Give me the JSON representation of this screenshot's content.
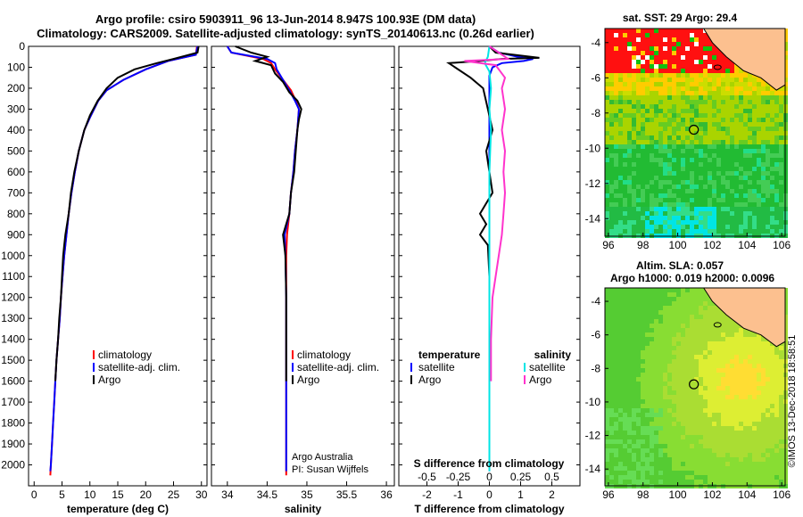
{
  "header": {
    "title_line1": "Argo profile: csiro 5903911_96 13-Jun-2014 8.947S 100.93E (DM data)",
    "title_line2": "Climatology: CARS2009. Satellite-adjusted climatology: synTS_20140613.nc (0.26d earlier)"
  },
  "colors": {
    "climatology": "#ff0000",
    "satellite_adj": "#0000ff",
    "argo": "#000000",
    "satellite_salinity": "#00e5e5",
    "argo_salinity_diff": "#ff33cc",
    "land": "#fcc08f"
  },
  "chart_data": [
    {
      "id": "temperature",
      "type": "line",
      "xlabel": "temperature (deg C)",
      "ylabel": "",
      "xlim": [
        -1,
        31
      ],
      "ylim": [
        2100,
        0
      ],
      "xticks": [
        "0",
        "5",
        "10",
        "15",
        "20",
        "25",
        "30"
      ],
      "xtick_values": [
        0,
        5,
        10,
        15,
        20,
        25,
        30
      ],
      "yticks": [
        "0",
        "100",
        "200",
        "300",
        "400",
        "500",
        "600",
        "700",
        "800",
        "900",
        "1000",
        "1100",
        "1200",
        "1300",
        "1400",
        "1500",
        "1600",
        "1700",
        "1800",
        "1900",
        "2000"
      ],
      "legend": [
        "climatology",
        "satellite-adj. clim.",
        "Argo"
      ],
      "series": [
        {
          "name": "climatology",
          "color": "#ff0000",
          "points": [
            [
              29.2,
              0
            ],
            [
              29.0,
              40
            ],
            [
              24,
              70
            ],
            [
              20,
              110
            ],
            [
              16,
              160
            ],
            [
              13,
              210
            ],
            [
              11.5,
              260
            ],
            [
              10,
              340
            ],
            [
              9,
              400
            ],
            [
              8,
              500
            ],
            [
              7.3,
              600
            ],
            [
              6.7,
              700
            ],
            [
              6.2,
              800
            ],
            [
              5.8,
              900
            ],
            [
              5.4,
              1000
            ],
            [
              5.1,
              1100
            ],
            [
              4.8,
              1200
            ],
            [
              4.6,
              1300
            ],
            [
              4.3,
              1400
            ],
            [
              4.0,
              1500
            ],
            [
              3.8,
              1600
            ],
            [
              3.6,
              1700
            ],
            [
              3.4,
              1800
            ],
            [
              3.2,
              1900
            ],
            [
              3.0,
              2000
            ],
            [
              2.9,
              2050
            ]
          ]
        },
        {
          "name": "satellite-adj. clim.",
          "color": "#0000ff",
          "points": [
            [
              29.3,
              0
            ],
            [
              29.0,
              40
            ],
            [
              24,
              70
            ],
            [
              20,
              110
            ],
            [
              16,
              160
            ],
            [
              13,
              210
            ],
            [
              11.5,
              260
            ],
            [
              10,
              340
            ],
            [
              9,
              400
            ],
            [
              8,
              500
            ],
            [
              7.3,
              600
            ],
            [
              6.7,
              700
            ],
            [
              6.2,
              800
            ],
            [
              5.8,
              900
            ],
            [
              5.4,
              1000
            ],
            [
              5.1,
              1100
            ],
            [
              4.8,
              1200
            ],
            [
              4.6,
              1300
            ],
            [
              4.3,
              1400
            ],
            [
              4.0,
              1500
            ],
            [
              3.8,
              1600
            ],
            [
              3.6,
              1700
            ],
            [
              3.4,
              1800
            ],
            [
              3.2,
              1900
            ],
            [
              3.0,
              2000
            ],
            [
              2.9,
              2030
            ]
          ]
        },
        {
          "name": "Argo",
          "color": "#000000",
          "points": [
            [
              29.5,
              0
            ],
            [
              29.3,
              30
            ],
            [
              25,
              60
            ],
            [
              22,
              80
            ],
            [
              18,
              110
            ],
            [
              15,
              150
            ],
            [
              13,
              200
            ],
            [
              11.4,
              260
            ],
            [
              10,
              330
            ],
            [
              9,
              400
            ],
            [
              8,
              500
            ],
            [
              7.2,
              600
            ],
            [
              6.6,
              700
            ],
            [
              6.2,
              800
            ],
            [
              5.6,
              900
            ],
            [
              5.4,
              950
            ],
            [
              5.2,
              1000
            ],
            [
              5.0,
              1100
            ],
            [
              4.8,
              1200
            ],
            [
              4.5,
              1300
            ],
            [
              4.3,
              1400
            ],
            [
              4.0,
              1500
            ],
            [
              3.8,
              1600
            ]
          ]
        }
      ]
    },
    {
      "id": "salinity",
      "type": "line",
      "xlabel": "salinity",
      "xlim": [
        33.8,
        36.1
      ],
      "ylim": [
        2100,
        0
      ],
      "xticks": [
        "34",
        "34.5",
        "35",
        "35.5",
        "36"
      ],
      "xtick_values": [
        34,
        34.5,
        35,
        35.5,
        36
      ],
      "legend": [
        "climatology",
        "satellite-adj. clim.",
        "Argo"
      ],
      "annotations": [
        "Argo Australia",
        "PI: Susan Wijffels"
      ],
      "series": [
        {
          "name": "climatology",
          "color": "#ff0000",
          "points": [
            [
              34.0,
              0
            ],
            [
              34.05,
              30
            ],
            [
              34.45,
              60
            ],
            [
              34.55,
              80
            ],
            [
              34.6,
              110
            ],
            [
              34.7,
              160
            ],
            [
              34.8,
              210
            ],
            [
              34.86,
              260
            ],
            [
              34.9,
              300
            ],
            [
              34.88,
              400
            ],
            [
              34.85,
              500
            ],
            [
              34.83,
              600
            ],
            [
              34.8,
              700
            ],
            [
              34.78,
              800
            ],
            [
              34.75,
              900
            ],
            [
              34.74,
              1000
            ],
            [
              34.74,
              1200
            ],
            [
              34.74,
              1400
            ],
            [
              34.74,
              1600
            ],
            [
              34.74,
              1800
            ],
            [
              34.74,
              2050
            ]
          ]
        },
        {
          "name": "satellite-adj. clim.",
          "color": "#0000ff",
          "points": [
            [
              34.0,
              0
            ],
            [
              34.05,
              30
            ],
            [
              34.5,
              60
            ],
            [
              34.6,
              80
            ],
            [
              34.62,
              110
            ],
            [
              34.7,
              160
            ],
            [
              34.78,
              210
            ],
            [
              34.85,
              260
            ],
            [
              34.9,
              300
            ],
            [
              34.88,
              400
            ],
            [
              34.85,
              500
            ],
            [
              34.83,
              600
            ],
            [
              34.8,
              700
            ],
            [
              34.78,
              800
            ],
            [
              34.72,
              900
            ],
            [
              34.73,
              1000
            ],
            [
              34.74,
              1200
            ],
            [
              34.74,
              1400
            ],
            [
              34.74,
              1600
            ],
            [
              34.74,
              1800
            ],
            [
              34.74,
              2030
            ]
          ]
        },
        {
          "name": "Argo",
          "color": "#000000",
          "points": [
            [
              34.1,
              0
            ],
            [
              34.3,
              30
            ],
            [
              34.5,
              50
            ],
            [
              34.35,
              70
            ],
            [
              34.55,
              90
            ],
            [
              34.6,
              130
            ],
            [
              34.7,
              170
            ],
            [
              34.78,
              220
            ],
            [
              34.88,
              260
            ],
            [
              34.93,
              300
            ],
            [
              34.9,
              350
            ],
            [
              34.88,
              400
            ],
            [
              34.86,
              500
            ],
            [
              34.84,
              600
            ],
            [
              34.8,
              700
            ],
            [
              34.78,
              800
            ],
            [
              34.7,
              900
            ],
            [
              34.73,
              1000
            ],
            [
              34.74,
              1200
            ],
            [
              34.74,
              1400
            ],
            [
              34.74,
              1600
            ]
          ]
        }
      ]
    },
    {
      "id": "difference",
      "type": "line",
      "xlabel": "T difference from climatology",
      "xlabel_top": "S difference from climatology",
      "xlim": [
        -2.9,
        2.9
      ],
      "ylim": [
        2100,
        0
      ],
      "xticks": [
        "-2",
        "-1",
        "0",
        "1",
        "2"
      ],
      "xtick_values": [
        -2,
        -1,
        0,
        1,
        2
      ],
      "xticks_top": [
        "-0.5",
        "-0.25",
        "0",
        "0.25",
        "0.5"
      ],
      "xtick_top_values": [
        -0.5,
        -0.25,
        0,
        0.25,
        0.5
      ],
      "legend_titles": [
        "temperature",
        "salinity"
      ],
      "legend": [
        "satellite",
        "Argo",
        "satellite",
        "Argo"
      ],
      "series": [
        {
          "name": "temperature satellite",
          "color": "#0000ff",
          "points": [
            [
              0,
              0
            ],
            [
              0.3,
              30
            ],
            [
              0.9,
              50
            ],
            [
              1.4,
              60
            ],
            [
              1.1,
              70
            ],
            [
              0.4,
              80
            ],
            [
              0.1,
              100
            ],
            [
              0,
              140
            ],
            [
              0,
              2030
            ]
          ]
        },
        {
          "name": "temperature Argo",
          "color": "#000000",
          "points": [
            [
              0,
              0
            ],
            [
              0.2,
              30
            ],
            [
              1.6,
              55
            ],
            [
              0.4,
              60
            ],
            [
              -0.3,
              70
            ],
            [
              -1.3,
              80
            ],
            [
              -1.1,
              100
            ],
            [
              -0.6,
              150
            ],
            [
              -0.2,
              200
            ],
            [
              -0.05,
              300
            ],
            [
              0.1,
              400
            ],
            [
              -0.1,
              500
            ],
            [
              0,
              600
            ],
            [
              0.1,
              700
            ],
            [
              -0.3,
              800
            ],
            [
              -0.1,
              850
            ],
            [
              -0.3,
              900
            ],
            [
              -0.05,
              950
            ],
            [
              0,
              1100
            ],
            [
              0,
              1300
            ],
            [
              0,
              1600
            ]
          ]
        },
        {
          "name": "salinity satellite",
          "color": "#00e5e5",
          "points": [
            [
              0,
              0
            ],
            [
              -0.05,
              50
            ],
            [
              -0.15,
              80
            ],
            [
              0,
              120
            ],
            [
              0.05,
              200
            ],
            [
              0,
              300
            ],
            [
              0.05,
              400
            ],
            [
              0,
              600
            ],
            [
              0,
              800
            ],
            [
              0,
              1000
            ],
            [
              0,
              1200
            ],
            [
              0,
              1400
            ],
            [
              0,
              1600
            ],
            [
              0,
              1800
            ],
            [
              0,
              2030
            ]
          ]
        },
        {
          "name": "salinity Argo",
          "color": "#ff33cc",
          "points": [
            [
              0,
              0
            ],
            [
              0.5,
              50
            ],
            [
              0.6,
              60
            ],
            [
              -0.8,
              70
            ],
            [
              0.2,
              90
            ],
            [
              0.35,
              120
            ],
            [
              0.5,
              150
            ],
            [
              0.4,
              200
            ],
            [
              0.5,
              300
            ],
            [
              0.4,
              400
            ],
            [
              0.5,
              500
            ],
            [
              0.45,
              600
            ],
            [
              0.5,
              700
            ],
            [
              0.45,
              800
            ],
            [
              0.4,
              900
            ],
            [
              0.3,
              1000
            ],
            [
              0.2,
              1100
            ],
            [
              0.1,
              1200
            ],
            [
              0.05,
              1400
            ],
            [
              0.05,
              1600
            ]
          ]
        }
      ]
    },
    {
      "id": "sst_map",
      "type": "heatmap",
      "title": "sat. SST: 29 Argo: 29.4",
      "xlim": [
        95.8,
        106.2
      ],
      "ylim": [
        -15,
        -3.2
      ],
      "xticks": [
        "96",
        "98",
        "100",
        "102",
        "104",
        "106"
      ],
      "xtick_values": [
        96,
        98,
        100,
        102,
        104,
        106
      ],
      "yticks": [
        "-4",
        "-6",
        "-8",
        "-10",
        "-12",
        "-14"
      ],
      "ytick_values": [
        -4,
        -6,
        -8,
        -10,
        -12,
        -14
      ],
      "profile_marker": {
        "lon": 100.93,
        "lat": -8.947
      }
    },
    {
      "id": "sla_map",
      "type": "heatmap",
      "title": "Altim. SLA: 0.057",
      "subtitle": "Argo h1000: 0.019 h2000: 0.0096",
      "xlim": [
        95.8,
        106.2
      ],
      "ylim": [
        -15,
        -3.2
      ],
      "xticks": [
        "96",
        "98",
        "100",
        "102",
        "104",
        "106"
      ],
      "xtick_values": [
        96,
        98,
        100,
        102,
        104,
        106
      ],
      "yticks": [
        "-4",
        "-6",
        "-8",
        "-10",
        "-12",
        "-14"
      ],
      "ytick_values": [
        -4,
        -6,
        -8,
        -10,
        -12,
        -14
      ],
      "profile_marker": {
        "lon": 100.93,
        "lat": -8.947
      }
    }
  ],
  "credit": "©IMOS 13-Dec-2018 18:58:51"
}
